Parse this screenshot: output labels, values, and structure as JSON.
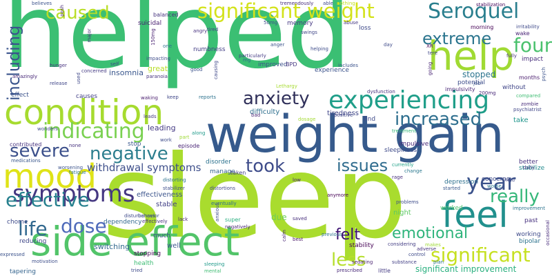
{
  "words": [
    {
      "text": "helped",
      "color": "#3bbf73"
    },
    {
      "text": "sleep",
      "color": "#a9dc2e"
    },
    {
      "text": "weight gain",
      "color": "#365a8c"
    },
    {
      "text": "side effect",
      "color": "#52c469"
    },
    {
      "text": "condition",
      "color": "#a6db2f"
    },
    {
      "text": "help",
      "color": "#a0da33"
    },
    {
      "text": "significant weight",
      "color": "#d3e21b"
    },
    {
      "text": "caused",
      "color": "#b9de28"
    },
    {
      "text": "Seroquel",
      "color": "#2a7f8e"
    },
    {
      "text": "mood",
      "color": "#dfe318"
    },
    {
      "text": "experiencing",
      "color": "#1f9e89"
    },
    {
      "text": "feel",
      "color": "#21908d"
    },
    {
      "text": "indicating",
      "color": "#7ad151"
    },
    {
      "text": "anxiety",
      "color": "#30305a"
    },
    {
      "text": "increased",
      "color": "#2d6e8e"
    },
    {
      "text": "symptoms",
      "color": "#453781"
    },
    {
      "text": "effective",
      "color": "#27808e"
    },
    {
      "text": "severe",
      "color": "#3c508b"
    },
    {
      "text": "significant",
      "color": "#c6e020"
    },
    {
      "text": "negative",
      "color": "#2c7e8e"
    },
    {
      "text": "dose",
      "color": "#4f6bba"
    },
    {
      "text": "found",
      "color": "#4ac16d"
    },
    {
      "text": "extreme",
      "color": "#2b758e"
    },
    {
      "text": "year",
      "color": "#3b528b"
    },
    {
      "text": "including",
      "color": "#3a548c"
    },
    {
      "text": "really",
      "color": "#35b779"
    },
    {
      "text": "took",
      "color": "#3e4c8a"
    },
    {
      "text": "issues",
      "color": "#2f6c8e"
    },
    {
      "text": "life",
      "color": "#31688e"
    },
    {
      "text": "emotional",
      "color": "#2fb47c"
    },
    {
      "text": "felt",
      "color": "#3b0f70"
    },
    {
      "text": "less",
      "color": "#b5de2b"
    },
    {
      "text": "withdrawal symptoms",
      "color": "#3d4e8a"
    },
    {
      "text": "stopped",
      "color": "#2b748e"
    },
    {
      "text": "significant improvement",
      "color": "#2ab07f"
    },
    {
      "text": "insomnia",
      "color": "#39568c"
    },
    {
      "text": "great",
      "color": "#b8de29"
    },
    {
      "text": "leading",
      "color": "#443983"
    },
    {
      "text": "effectiveness",
      "color": "#3a538b"
    },
    {
      "text": "stable",
      "color": "#424086"
    },
    {
      "text": "due",
      "color": "#6ece58"
    },
    {
      "text": "night",
      "color": "#5cc863"
    },
    {
      "text": "stability",
      "color": "#440154"
    },
    {
      "text": "depression",
      "color": "#2d708e"
    },
    {
      "text": "worked",
      "color": "#4ac16d"
    },
    {
      "text": "better",
      "color": "#46327e"
    },
    {
      "text": "difficulty",
      "color": "#2e6f8e"
    },
    {
      "text": "tiredness",
      "color": "#404688"
    },
    {
      "text": "take",
      "color": "#1f958b"
    },
    {
      "text": "find",
      "color": "#3e4989"
    },
    {
      "text": "experience",
      "color": "#3b528b"
    },
    {
      "text": "impulsive",
      "color": "#482878"
    },
    {
      "text": "sleepiness",
      "color": "#3e4a89"
    },
    {
      "text": "stabilize",
      "color": "#238a8d"
    },
    {
      "text": "disorder",
      "color": "#2c728e"
    },
    {
      "text": "manage",
      "color": "#33638d"
    },
    {
      "text": "switching",
      "color": "#31688e"
    },
    {
      "text": "stopping",
      "color": "#440154"
    },
    {
      "text": "much",
      "color": "#3b518b"
    },
    {
      "text": "well",
      "color": "#3a548c"
    },
    {
      "text": "dependency",
      "color": "#31688e"
    },
    {
      "text": "reducing",
      "color": "#3f4788"
    },
    {
      "text": "stop",
      "color": "#39568c"
    },
    {
      "text": "bipolar",
      "color": "#2c738e"
    },
    {
      "text": "working",
      "color": "#3e4a89"
    },
    {
      "text": "past",
      "color": "#46307e"
    },
    {
      "text": "potential",
      "color": "#3d4d8a"
    },
    {
      "text": "impulsivity",
      "color": "#482475"
    },
    {
      "text": "without",
      "color": "#404688"
    },
    {
      "text": "months",
      "color": "#481b6d"
    },
    {
      "text": "improved",
      "color": "#3b528b"
    },
    {
      "text": "memory",
      "color": "#453882"
    },
    {
      "text": "numbness",
      "color": "#433e85"
    },
    {
      "text": "suicidal",
      "color": "#481f70"
    },
    {
      "text": "balanced",
      "color": "#46337e"
    },
    {
      "text": "morning",
      "color": "#440154"
    },
    {
      "text": "loss",
      "color": "#3e4989"
    },
    {
      "text": "abuse",
      "color": "#453882"
    },
    {
      "text": "impact",
      "color": "#472d7b"
    },
    {
      "text": "wake",
      "color": "#482475"
    },
    {
      "text": "zombie",
      "color": "#472c7a"
    },
    {
      "text": "effect",
      "color": "#3b528b"
    },
    {
      "text": "causes",
      "color": "#424086"
    },
    {
      "text": "tapering",
      "color": "#33638d"
    },
    {
      "text": "health",
      "color": "#3dbc74"
    },
    {
      "text": "super",
      "color": "#29af7f"
    },
    {
      "text": "eventually",
      "color": "#2e6e8e"
    },
    {
      "text": "anymore",
      "color": "#440154"
    },
    {
      "text": "concerns",
      "color": "#3e4a89"
    },
    {
      "text": "worse",
      "color": "#2a768e"
    },
    {
      "text": "hold",
      "color": "#3f4889"
    },
    {
      "text": "improvement",
      "color": "#2c738e"
    },
    {
      "text": "stabilization",
      "color": "#46085c"
    },
    {
      "text": "potent",
      "color": "#482677"
    },
    {
      "text": "prescribed",
      "color": "#482878"
    },
    {
      "text": "expressed",
      "color": "#3b528b"
    },
    {
      "text": "little",
      "color": "#443a83"
    },
    {
      "text": "contributed",
      "color": "#46327e"
    },
    {
      "text": "medications",
      "color": "#39568c"
    },
    {
      "text": "lack",
      "color": "#482576"
    },
    {
      "text": "taken",
      "color": "#424086"
    },
    {
      "text": "BPD",
      "color": "#453781"
    },
    {
      "text": "mg",
      "color": "#31688e"
    },
    {
      "text": "tremendously",
      "color": "#472d7b"
    },
    {
      "text": "believes",
      "color": "#3b528b"
    },
    {
      "text": "nothing",
      "color": "#c2df23"
    },
    {
      "text": "able",
      "color": "#3e4989"
    },
    {
      "text": "currently",
      "color": "#1fa187"
    },
    {
      "text": "change",
      "color": "#2a788e"
    },
    {
      "text": "previous",
      "color": "#2c728e"
    },
    {
      "text": "treatment",
      "color": "#35b779"
    },
    {
      "text": "episode",
      "color": "#482475"
    },
    {
      "text": "none",
      "color": "#46327e"
    },
    {
      "text": "leads",
      "color": "#443983"
    },
    {
      "text": "anger",
      "color": "#3b528b"
    },
    {
      "text": "tired",
      "color": "#433e85"
    },
    {
      "text": "swings",
      "color": "#404688"
    },
    {
      "text": "waking",
      "color": "#481b6d"
    },
    {
      "text": "keep",
      "color": "#3f4788"
    },
    {
      "text": "reports",
      "color": "#2c728e"
    },
    {
      "text": "rage",
      "color": "#472f7d"
    },
    {
      "text": "low",
      "color": "#482576"
    },
    {
      "text": "saved",
      "color": "#472e7c"
    },
    {
      "text": "best",
      "color": "#471365"
    },
    {
      "text": "calm",
      "color": "#482475"
    },
    {
      "text": "angry",
      "color": "#46307e"
    },
    {
      "text": "causing",
      "color": "#3f4889"
    },
    {
      "text": "helping",
      "color": "#3e4c8a"
    },
    {
      "text": "includes",
      "color": "#3b528b"
    },
    {
      "text": "stabilizer",
      "color": "#3d4d8a"
    },
    {
      "text": "sedating",
      "color": "#481f70"
    },
    {
      "text": "considering",
      "color": "#433d84"
    },
    {
      "text": "substance",
      "color": "#423f85"
    },
    {
      "text": "control",
      "color": "#3e4a89"
    },
    {
      "text": "adverse",
      "color": "#46337e"
    },
    {
      "text": "started",
      "color": "#38588c"
    },
    {
      "text": "daily",
      "color": "#453882"
    },
    {
      "text": "psych",
      "color": "#472a7a"
    },
    {
      "text": "plan",
      "color": "#3b528b"
    },
    {
      "text": "sleeping",
      "color": "#2c738e"
    },
    {
      "text": "mental",
      "color": "#1f9a8a"
    },
    {
      "text": "tried",
      "color": "#3fbc73"
    },
    {
      "text": "motivation",
      "color": "#3e4a89"
    },
    {
      "text": "worsening",
      "color": "#3d4e8a"
    },
    {
      "text": "fatigue",
      "color": "#3b528b"
    },
    {
      "text": "amazingly",
      "color": "#2c738e"
    },
    {
      "text": "release",
      "color": "#482878"
    },
    {
      "text": "hunger",
      "color": "#404688"
    },
    {
      "text": "concerned",
      "color": "#46327e"
    },
    {
      "text": "major",
      "color": "#443a83"
    },
    {
      "text": "used",
      "color": "#3f4889"
    },
    {
      "text": "self",
      "color": "#472d7b"
    },
    {
      "text": "impacting",
      "color": "#482878"
    },
    {
      "text": "posh",
      "color": "#a5db36"
    },
    {
      "text": "one",
      "color": "#3e4989"
    },
    {
      "text": "good",
      "color": "#3e4c8a"
    },
    {
      "text": "paranoia",
      "color": "#52c569"
    },
    {
      "text": "150mg",
      "color": "#2c728e"
    },
    {
      "text": "50mg",
      "color": "#3b528b"
    },
    {
      "text": "particularly",
      "color": "#46327e"
    },
    {
      "text": "day",
      "color": "#481f70"
    },
    {
      "text": "XR",
      "color": "#3d4d8a"
    },
    {
      "text": "tere",
      "color": "#443a83"
    },
    {
      "text": "going",
      "color": "#3e4a89"
    },
    {
      "text": "job",
      "color": "#440154"
    },
    {
      "text": "200mg",
      "color": "#404688"
    },
    {
      "text": "compared",
      "color": "#482475"
    },
    {
      "text": "crazy",
      "color": "#3b528b"
    },
    {
      "text": "irritability",
      "color": "#482878"
    },
    {
      "text": "psychiatrist",
      "color": "#3fbc73"
    },
    {
      "text": "fully",
      "color": "#a0da39"
    },
    {
      "text": "along",
      "color": "#3e4989"
    },
    {
      "text": "part",
      "color": "#404688"
    },
    {
      "text": "work",
      "color": "#46327e"
    },
    {
      "text": "bad",
      "color": "#1f9a8a"
    },
    {
      "text": "positive",
      "color": "#a0da39"
    },
    {
      "text": "dysfunction",
      "color": "#3e4c8a"
    },
    {
      "text": "Lethargy",
      "color": "#482475"
    },
    {
      "text": "dosage",
      "color": "#3f4788"
    },
    {
      "text": "minimal",
      "color": "#46337e"
    },
    {
      "text": "problems",
      "color": "#a8db34"
    },
    {
      "text": "managing",
      "color": "#a5db36"
    },
    {
      "text": "distorting",
      "color": "#9fda3a"
    },
    {
      "text": "distortions",
      "color": "#3e4c8a"
    },
    {
      "text": "behavior",
      "color": "#a2da37"
    },
    {
      "text": "effectively",
      "color": "#2c728e"
    },
    {
      "text": "negatively",
      "color": "#404688"
    },
    {
      "text": "disturbances",
      "color": "#3b528b"
    },
    {
      "text": "anxious",
      "color": "#46327e"
    },
    {
      "text": "sense",
      "color": "#482475"
    },
    {
      "text": "ago",
      "color": "#3e4989"
    },
    {
      "text": "hard",
      "color": "#3e4c8a"
    },
    {
      "text": "wonders",
      "color": "#a0da39"
    },
    {
      "text": "makes",
      "color": "#a5db36"
    },
    {
      "text": "awake",
      "color": "#a8db34"
    },
    {
      "text": "chome",
      "color": "#3e4a89"
    },
    {
      "text": "long",
      "color": "#a0da39"
    },
    {
      "text": "occasional",
      "color": "#a2da37"
    },
    {
      "text": "lot",
      "color": "#3e4a89"
    }
  ]
}
